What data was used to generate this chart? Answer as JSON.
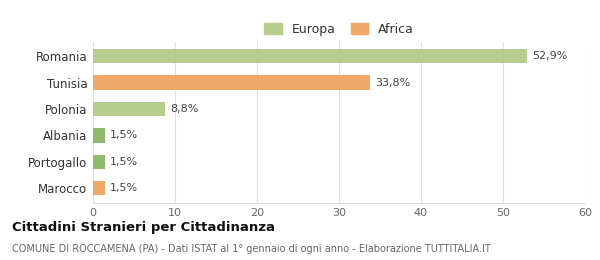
{
  "categories": [
    "Marocco",
    "Portogallo",
    "Albania",
    "Polonia",
    "Tunisia",
    "Romania"
  ],
  "values": [
    1.5,
    1.5,
    1.5,
    8.8,
    33.8,
    52.9
  ],
  "labels": [
    "1,5%",
    "1,5%",
    "1,5%",
    "8,8%",
    "33,8%",
    "52,9%"
  ],
  "colors": [
    "#f0a868",
    "#8fba6e",
    "#8fba6e",
    "#b5ce8e",
    "#f0a868",
    "#b5ce8e"
  ],
  "europa_color": "#b5ce8e",
  "africa_color": "#f0a868",
  "xlim": [
    0,
    60
  ],
  "xticks": [
    0,
    10,
    20,
    30,
    40,
    50,
    60
  ],
  "title": "Cittadini Stranieri per Cittadinanza",
  "subtitle": "COMUNE DI ROCCAMENA (PA) - Dati ISTAT al 1° gennaio di ogni anno - Elaborazione TUTTITALIA.IT",
  "legend_labels": [
    "Europa",
    "Africa"
  ],
  "bg_color": "#ffffff",
  "grid_color": "#e0e0e0"
}
